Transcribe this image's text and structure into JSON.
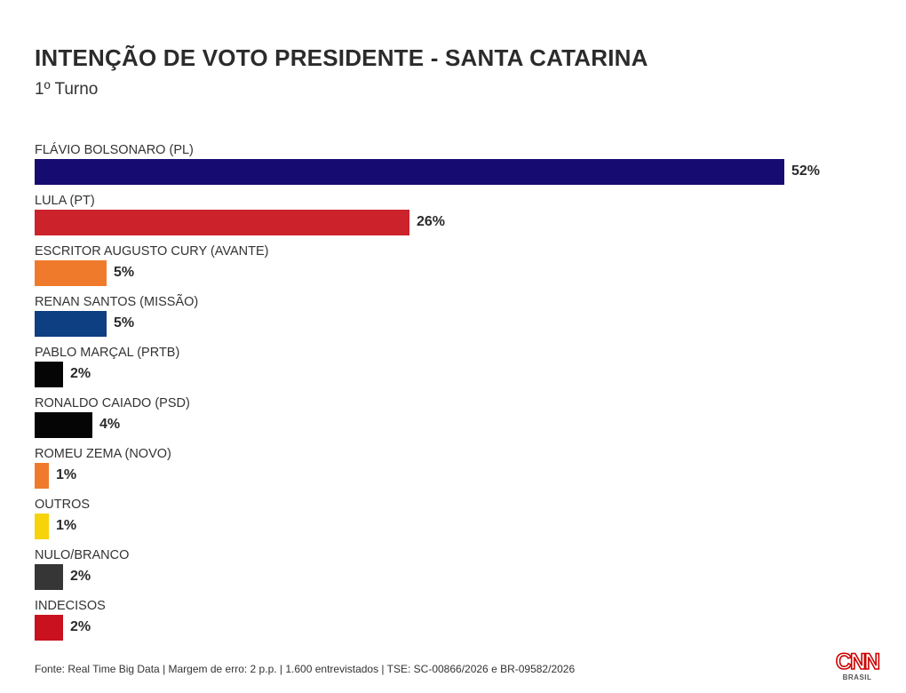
{
  "header": {
    "title": "INTENÇÃO DE VOTO PRESIDENTE - SANTA CATARINA",
    "subtitle": "1º Turno"
  },
  "chart_data": {
    "type": "bar",
    "orientation": "horizontal",
    "title": "INTENÇÃO DE VOTO PRESIDENTE - SANTA CATARINA",
    "subtitle": "1º Turno",
    "categories": [
      "FLÁVIO BOLSONARO (PL)",
      "LULA (PT)",
      "ESCRITOR AUGUSTO CURY (AVANTE)",
      "RENAN SANTOS (MISSÃO)",
      "PABLO MARÇAL (PRTB)",
      "RONALDO CAIADO (PSD)",
      "ROMEU ZEMA (NOVO)",
      "OUTROS",
      "NULO/BRANCO",
      "INDECISOS"
    ],
    "values": [
      52,
      26,
      5,
      5,
      2,
      4,
      1,
      1,
      2,
      2
    ],
    "value_labels": [
      "52%",
      "26%",
      "5%",
      "5%",
      "2%",
      "4%",
      "1%",
      "1%",
      "2%",
      "2%"
    ],
    "colors": [
      "#150b70",
      "#cc222c",
      "#f07a2c",
      "#0d3f82",
      "#050505",
      "#050505",
      "#f07a2c",
      "#f7d30a",
      "#363636",
      "#c9111f"
    ],
    "unit": "%",
    "grid": false,
    "legend": "none"
  },
  "footer": {
    "source": "Fonte: Real Time Big Data | Margem de erro: 2 p.p. | 1.600 entrevistados | TSE: SC-00866/2026 e BR-09582/2026"
  },
  "logo": {
    "text": "CNN",
    "sub": "BRASIL",
    "color": "#cc0000"
  }
}
